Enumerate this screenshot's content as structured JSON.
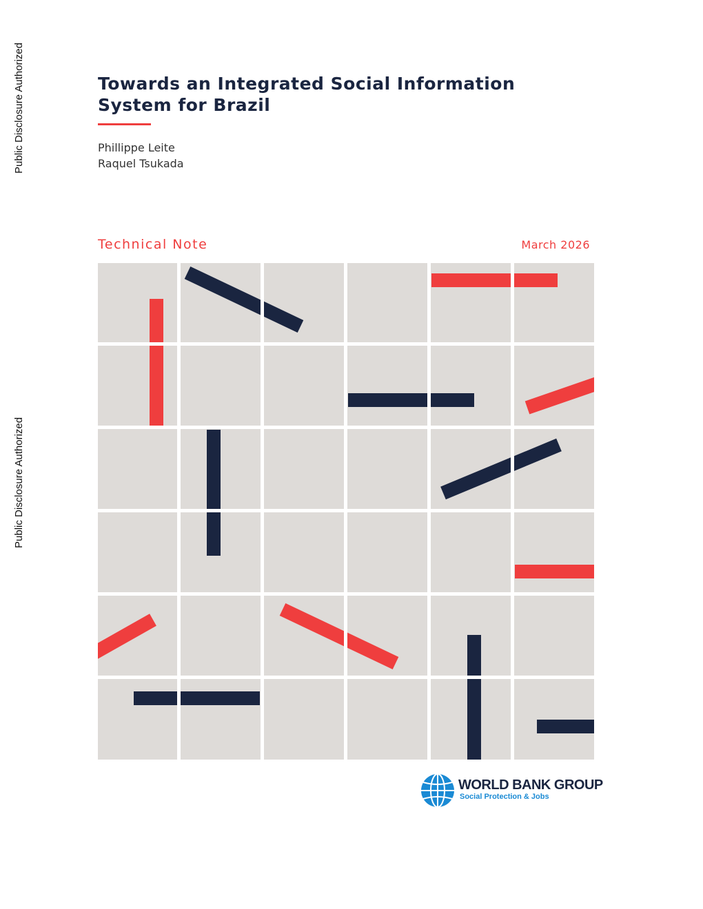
{
  "side_labels": [
    "Public Disclosure Authorized",
    "Public Disclosure Authorized"
  ],
  "header": {
    "title": "Towards an Integrated Social Information System for Brazil",
    "authors": [
      "Phillippe Leite",
      "Raquel Tsukada"
    ],
    "document_type": "Technical Note",
    "date": "March 2026"
  },
  "footer": {
    "organization": "WORLD BANK GROUP",
    "unit": "Social Protection & Jobs"
  }
}
